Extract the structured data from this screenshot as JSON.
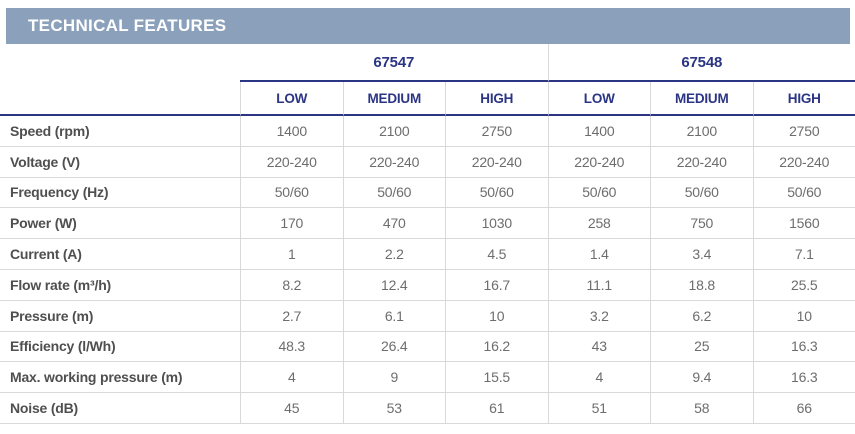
{
  "header": {
    "title": "TECHNICAL FEATURES"
  },
  "colors": {
    "title_bar_background": "#8BA1BB",
    "title_text": "#FFFFFF",
    "accent_navy": "#2B3584",
    "row_label_text": "#4F4F4F",
    "value_text": "#6D6D6D",
    "grid_line": "#D9D9D9"
  },
  "table": {
    "products": [
      {
        "id": "67547"
      },
      {
        "id": "67548"
      }
    ],
    "speed_levels": [
      "LOW",
      "MEDIUM",
      "HIGH"
    ],
    "rows": [
      {
        "label": "Speed (rpm)",
        "values": [
          "1400",
          "2100",
          "2750",
          "1400",
          "2100",
          "2750"
        ]
      },
      {
        "label": "Voltage (V)",
        "values": [
          "220-240",
          "220-240",
          "220-240",
          "220-240",
          "220-240",
          "220-240"
        ]
      },
      {
        "label": "Frequency (Hz)",
        "values": [
          "50/60",
          "50/60",
          "50/60",
          "50/60",
          "50/60",
          "50/60"
        ]
      },
      {
        "label": "Power (W)",
        "values": [
          "170",
          "470",
          "1030",
          "258",
          "750",
          "1560"
        ]
      },
      {
        "label": "Current (A)",
        "values": [
          "1",
          "2.2",
          "4.5",
          "1.4",
          "3.4",
          "7.1"
        ]
      },
      {
        "label": "Flow rate (m³/h)",
        "values": [
          "8.2",
          "12.4",
          "16.7",
          "11.1",
          "18.8",
          "25.5"
        ]
      },
      {
        "label": "Pressure (m)",
        "values": [
          "2.7",
          "6.1",
          "10",
          "3.2",
          "6.2",
          "10"
        ]
      },
      {
        "label": "Efficiency (l/Wh)",
        "values": [
          "48.3",
          "26.4",
          "16.2",
          "43",
          "25",
          "16.3"
        ]
      },
      {
        "label": "Max. working pressure (m)",
        "values": [
          "4",
          "9",
          "15.5",
          "4",
          "9.4",
          "16.3"
        ]
      },
      {
        "label": "Noise (dB)",
        "values": [
          "45",
          "53",
          "61",
          "51",
          "58",
          "66"
        ]
      }
    ]
  }
}
